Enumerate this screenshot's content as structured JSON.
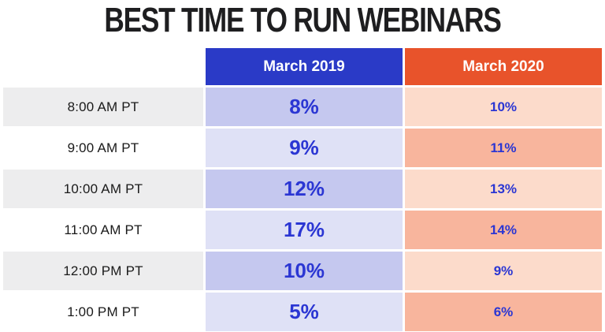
{
  "title": "BEST TIME TO RUN WEBINARS",
  "table": {
    "columns": [
      {
        "label": "March 2019",
        "color": "#2a3ac7"
      },
      {
        "label": "March 2020",
        "color": "#e8532b"
      }
    ],
    "rows": [
      {
        "time": "8:00 AM PT",
        "v2019": "8%",
        "v2020": "10%"
      },
      {
        "time": "9:00 AM PT",
        "v2019": "9%",
        "v2020": "11%"
      },
      {
        "time": "10:00 AM PT",
        "v2019": "12%",
        "v2020": "13%"
      },
      {
        "time": "11:00 AM PT",
        "v2019": "17%",
        "v2020": "14%"
      },
      {
        "time": "12:00 PM PT",
        "v2019": "10%",
        "v2020": "9%"
      },
      {
        "time": "1:00 PM PT",
        "v2019": "5%",
        "v2020": "6%"
      }
    ]
  },
  "colors": {
    "header_2019_bg": "#2a3ac7",
    "header_2020_bg": "#e8532b",
    "cell_2019_dark": "#c5c8ef",
    "cell_2019_light": "#dfe1f6",
    "cell_2020_light": "#fcdbcb",
    "cell_2020_dark": "#f8b59d",
    "time_cell_gray": "#ededee",
    "value_text_blue": "#2b36d3",
    "title_text": "#1e1e20"
  },
  "chart_data": {
    "type": "table",
    "title": "BEST TIME TO RUN WEBINARS",
    "categories": [
      "8:00 AM PT",
      "9:00 AM PT",
      "10:00 AM PT",
      "11:00 AM PT",
      "12:00 PM PT",
      "1:00 PM PT"
    ],
    "series": [
      {
        "name": "March 2019",
        "values": [
          8,
          9,
          12,
          17,
          10,
          5
        ]
      },
      {
        "name": "March 2020",
        "values": [
          10,
          11,
          13,
          14,
          9,
          6
        ]
      }
    ],
    "value_unit": "%",
    "legend_position": "column-headers",
    "grid": false
  }
}
